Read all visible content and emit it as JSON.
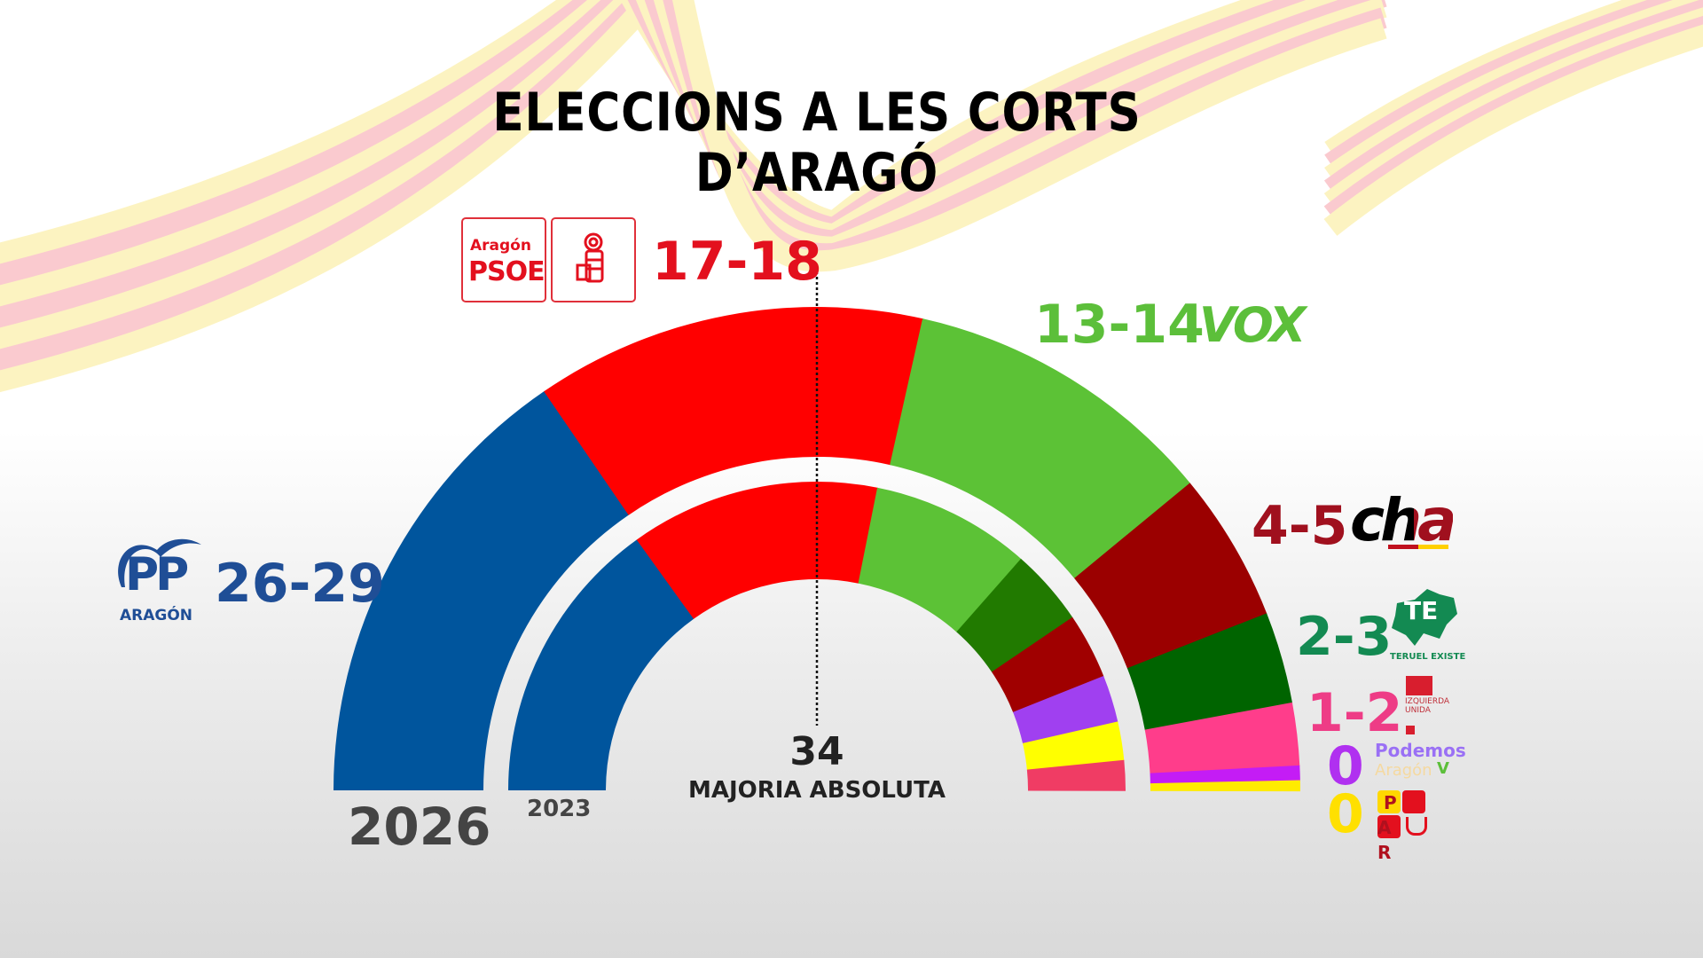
{
  "title": {
    "line1": "ELECCIONS A LES CORTS",
    "line2": "D’ARAGÓ"
  },
  "majority": {
    "value": "34",
    "label": "MAJORIA ABSOLUTA"
  },
  "ring_labels": {
    "outer": "2026",
    "inner": "2023"
  },
  "parties": {
    "pp": {
      "range": "26-29",
      "logo_text": "PP",
      "logo_sub": "ARAGÓN",
      "color": "#1f4e96"
    },
    "psoe": {
      "range": "17-18",
      "logo_top": "Aragón",
      "logo_main": "PSOE",
      "color": "#e3101e"
    },
    "vox": {
      "range": "13-14",
      "logo_text": "VOX",
      "color": "#5cbf3a"
    },
    "cha": {
      "range": "4-5",
      "logo_text": "cha",
      "color": "#a0101e"
    },
    "te": {
      "range": "2-3",
      "logo_text": "TE",
      "logo_sub": "TERUEL EXISTE",
      "color": "#138a52"
    },
    "iu": {
      "range": "1-2",
      "logo_line1": "IZQUIERDA",
      "logo_line2": "UNIDA",
      "color": "#ee3c86"
    },
    "podemos": {
      "range": "0",
      "logo_line1": "Podemos",
      "logo_line2": "Aragón",
      "color": "#b030f0"
    },
    "par": {
      "range": "0",
      "logo_text": "PAR",
      "color": "#ffe000"
    }
  },
  "chart_data": {
    "type": "pie",
    "subtype": "parliament-semicircle",
    "title": "ELECCIONS A LES CORTS D’ARAGÓ",
    "total_seats": 67,
    "majority": 34,
    "series": [
      {
        "name": "2026",
        "ring": "outer",
        "segments": [
          {
            "party": "PP",
            "seats_range": "26-29",
            "arc_value": 20.7,
            "color": "#00559d"
          },
          {
            "party": "PSOE",
            "seats_range": "17-18",
            "arc_value": 17.5,
            "color": "#ff0000"
          },
          {
            "party": "VOX",
            "seats_range": "13-14",
            "arc_value": 14.1,
            "color": "#5cc236"
          },
          {
            "party": "CHA",
            "seats_range": "4-5",
            "arc_value": 6.7,
            "color": "#9b0000"
          },
          {
            "party": "Teruel Existe",
            "seats_range": "2-3",
            "arc_value": 4.1,
            "color": "#006400"
          },
          {
            "party": "IU",
            "seats_range": "1-2",
            "arc_value": 2.8,
            "color": "#ff3d8b"
          },
          {
            "party": "Podemos",
            "seats_range": "0",
            "arc_value": 0.65,
            "color": "#c41cf5"
          },
          {
            "party": "PAR",
            "seats_range": "0",
            "arc_value": 0.45,
            "color": "#ffeb00"
          }
        ]
      },
      {
        "name": "2023",
        "ring": "inner",
        "segments": [
          {
            "party": "PP",
            "arc_value": 20.2,
            "color": "#00559d"
          },
          {
            "party": "PSOE",
            "arc_value": 17.5,
            "color": "#ff0000"
          },
          {
            "party": "VOX",
            "arc_value": 11.2,
            "color": "#5cc236"
          },
          {
            "party": "Teruel Existe",
            "arc_value": 5.4,
            "color": "#217a00"
          },
          {
            "party": "CHA",
            "arc_value": 4.6,
            "color": "#a00000"
          },
          {
            "party": "Podemos",
            "arc_value": 3.3,
            "color": "#a040f0"
          },
          {
            "party": "PAR",
            "arc_value": 2.7,
            "color": "#ffff00"
          },
          {
            "party": "IU",
            "arc_value": 2.1,
            "color": "#f03c64"
          }
        ]
      }
    ]
  }
}
